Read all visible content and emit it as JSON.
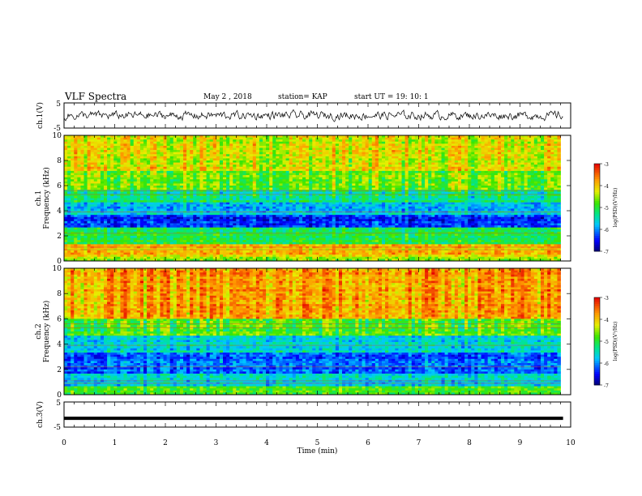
{
  "header": {
    "title": "VLF Spectra",
    "date": "May 2  , 2018",
    "station": "station= KAP",
    "start": "start  UT  =   19: 10: 1"
  },
  "chart_data": [
    {
      "type": "line",
      "panel": "ch1-waveform",
      "ylabel": "ch.1(V)",
      "ylim": [
        -5,
        5
      ],
      "yticks": [
        "5",
        "-5"
      ],
      "xlim": [
        0,
        10
      ],
      "description_values": "noisy waveform roughly between -2 and 2 V across 0-9.8 min"
    },
    {
      "type": "heatmap",
      "panel": "ch1-spectrogram",
      "ylabel": "ch.1\nFrequency  (kHz)",
      "ylim": [
        0,
        10
      ],
      "yticks": [
        "0",
        "2",
        "4",
        "6",
        "8",
        "10"
      ],
      "xlim": [
        0,
        10
      ],
      "data_xrange": [
        0,
        9.8
      ],
      "colorbar": {
        "label": "log(PSD)(V²/Hz)",
        "range": [
          -7,
          -3
        ],
        "ticks": [
          "-3",
          "-4",
          "-5",
          "-6",
          "-7"
        ]
      },
      "bands": [
        {
          "from": 0,
          "to": 0.4,
          "level": -4.6
        },
        {
          "from": 0.4,
          "to": 1.3,
          "level": -4.0
        },
        {
          "from": 1.3,
          "to": 2.6,
          "level": -5.1
        },
        {
          "from": 2.6,
          "to": 3.6,
          "level": -6.4
        },
        {
          "from": 3.6,
          "to": 4.6,
          "level": -5.8
        },
        {
          "from": 4.6,
          "to": 5.6,
          "level": -5.3
        },
        {
          "from": 5.6,
          "to": 7.2,
          "level": -4.7
        },
        {
          "from": 7.2,
          "to": 10,
          "level": -4.3
        }
      ]
    },
    {
      "type": "heatmap",
      "panel": "ch2-spectrogram",
      "ylabel": "ch.2\nFrequency  (kHz)",
      "ylim": [
        0,
        10
      ],
      "yticks": [
        "0",
        "2",
        "4",
        "6",
        "8",
        "10"
      ],
      "xlim": [
        0,
        10
      ],
      "data_xrange": [
        0,
        9.8
      ],
      "colorbar": {
        "label": "log(PSD)(V²/Hz)",
        "range": [
          -7,
          -3
        ],
        "ticks": [
          "-3",
          "-4",
          "-5",
          "-6",
          "-7"
        ]
      },
      "bands": [
        {
          "from": 0,
          "to": 0.6,
          "level": -4.8
        },
        {
          "from": 0.6,
          "to": 1.6,
          "level": -5.6
        },
        {
          "from": 1.6,
          "to": 3.4,
          "level": -6.2
        },
        {
          "from": 3.4,
          "to": 4.6,
          "level": -5.6
        },
        {
          "from": 4.6,
          "to": 6.0,
          "level": -4.8
        },
        {
          "from": 6.0,
          "to": 10,
          "level": -3.8
        }
      ]
    },
    {
      "type": "line",
      "panel": "ch3-waveform",
      "ylabel": "ch.3(V)",
      "ylim": [
        -5,
        5
      ],
      "yticks": [
        "5",
        "-5"
      ],
      "xlim": [
        0,
        10
      ],
      "value": -1.5,
      "xlabel": "Time  (min)",
      "xticks": [
        "0",
        "1",
        "2",
        "3",
        "4",
        "5",
        "6",
        "7",
        "8",
        "9",
        "10"
      ]
    }
  ],
  "colors": {
    "waveform": "#000000",
    "background": "#ffffff"
  }
}
